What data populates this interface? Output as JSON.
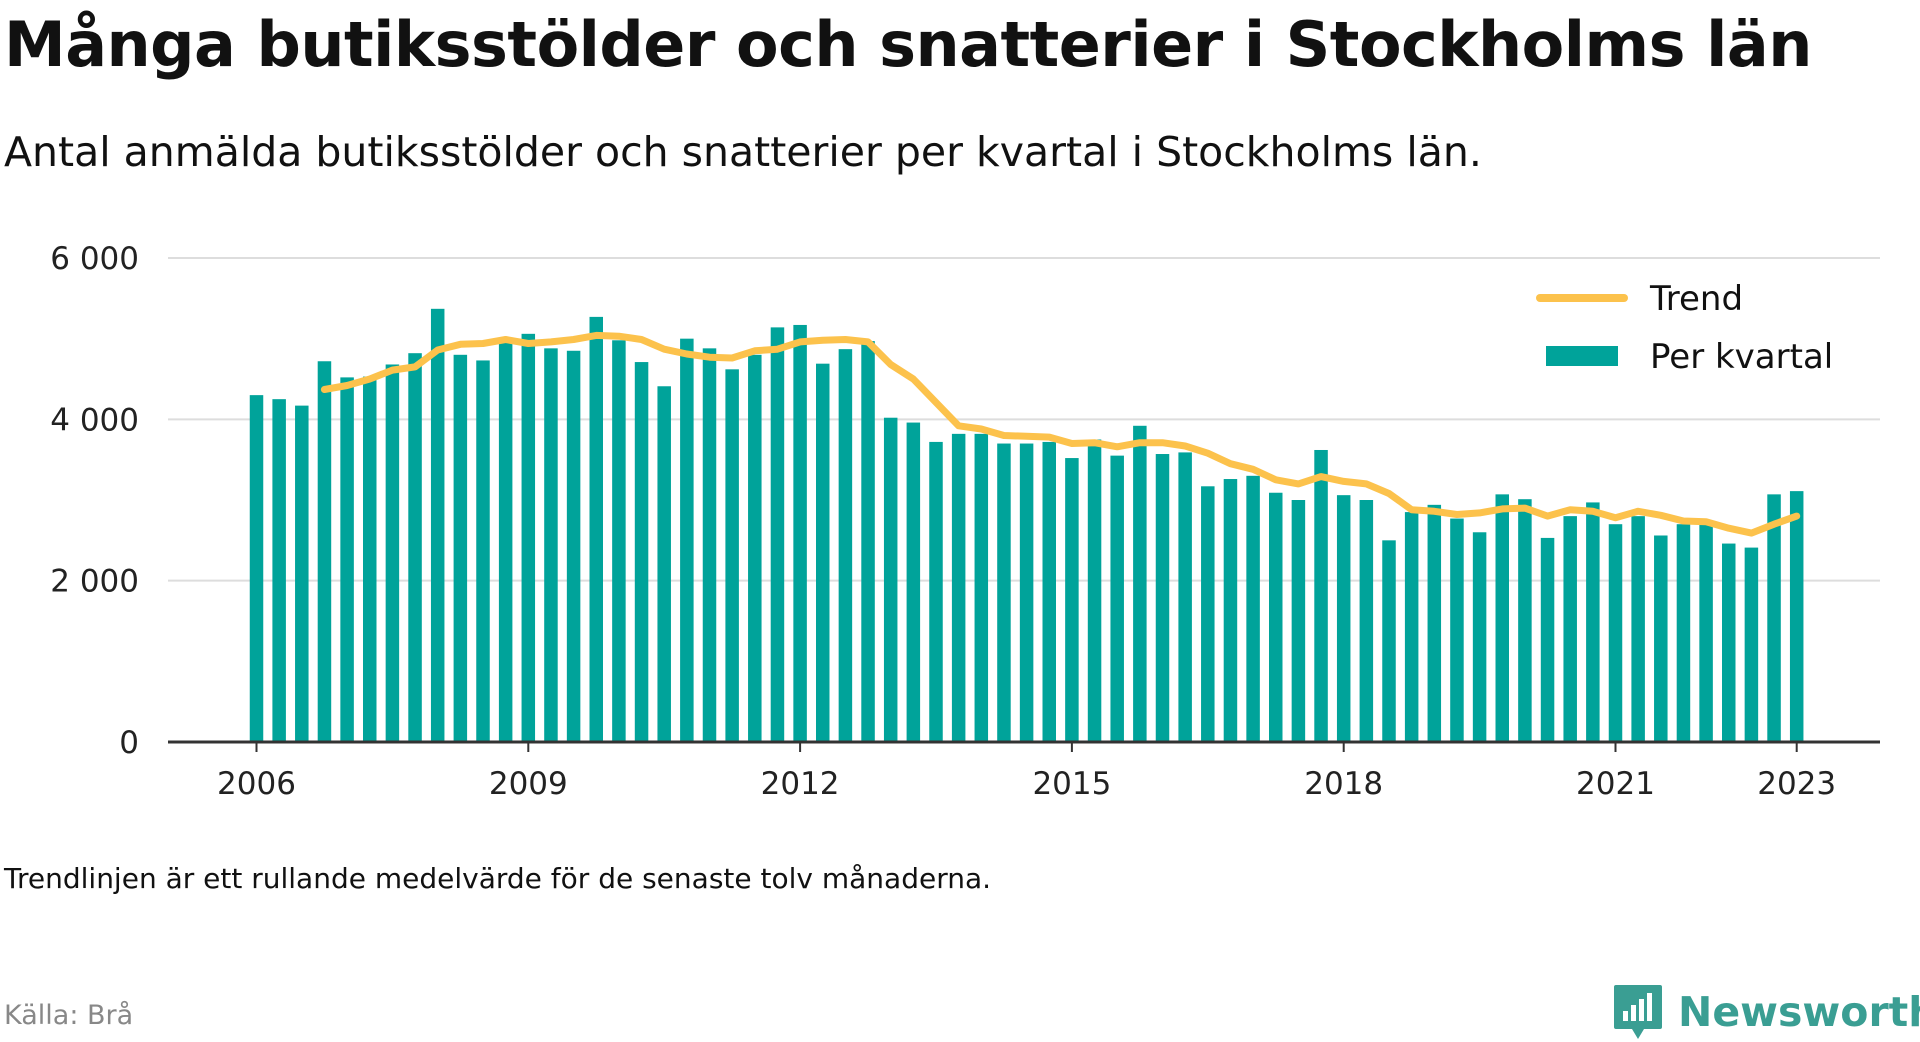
{
  "title": "Många butiksstölder och snatterier i Stockholms län",
  "subtitle": "Antal anmälda butiksstölder och snatterier per kvartal i Stockholms län.",
  "note": "Trendlinjen är ett rullande medelvärde för de senaste tolv månaderna.",
  "source": "Källa: Brå",
  "brand": {
    "name": "Newsworthy",
    "icon": "newsworthy-logo-icon"
  },
  "colors": {
    "bars": "#00a39a",
    "trend": "#fcc24c",
    "grid": "#dddddd",
    "axis": "#333333"
  },
  "chart_data": {
    "type": "bar",
    "x_start": "2006 Q1",
    "x_ticks": [
      "2006",
      "2009",
      "2012",
      "2015",
      "2018",
      "2021",
      "2023"
    ],
    "y_ticks": [
      "0",
      "2 000",
      "4 000",
      "6 000"
    ],
    "ylim": [
      0,
      6000
    ],
    "grid": true,
    "legend_position": "top-right",
    "series": [
      {
        "name": "Per kvartal",
        "type": "bar",
        "values": [
          4300,
          4250,
          4170,
          4720,
          4520,
          4530,
          4680,
          4820,
          5370,
          4800,
          4730,
          4970,
          5060,
          4880,
          4850,
          5270,
          4980,
          4710,
          4410,
          5000,
          4880,
          4620,
          4800,
          5140,
          5170,
          4690,
          4870,
          4970,
          4020,
          3960,
          3720,
          3820,
          3820,
          3700,
          3700,
          3720,
          3520,
          3750,
          3550,
          3920,
          3570,
          3590,
          3170,
          3260,
          3300,
          3090,
          3000,
          3620,
          3060,
          3000,
          2500,
          2850,
          2940,
          2770,
          2600,
          3070,
          3010,
          2530,
          2800,
          2970,
          2700,
          2800,
          2560,
          2700,
          2700,
          2460,
          2410,
          3070,
          3110
        ]
      },
      {
        "name": "Trend",
        "type": "line",
        "values": [
          null,
          null,
          null,
          4370,
          4420,
          4500,
          4610,
          4650,
          4860,
          4930,
          4940,
          4990,
          4940,
          4960,
          4990,
          5040,
          5030,
          4990,
          4870,
          4810,
          4770,
          4760,
          4850,
          4870,
          4960,
          4980,
          4990,
          4960,
          4680,
          4500,
          4210,
          3920,
          3880,
          3800,
          3790,
          3780,
          3700,
          3710,
          3660,
          3710,
          3710,
          3670,
          3580,
          3450,
          3380,
          3250,
          3200,
          3290,
          3230,
          3200,
          3080,
          2880,
          2860,
          2820,
          2840,
          2890,
          2900,
          2800,
          2880,
          2860,
          2780,
          2860,
          2810,
          2740,
          2730,
          2650,
          2590,
          2700,
          2800
        ]
      }
    ]
  }
}
